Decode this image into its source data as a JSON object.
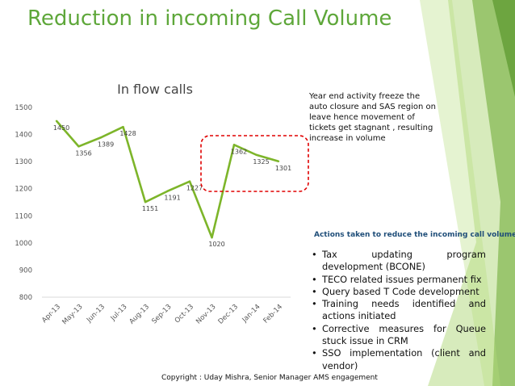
{
  "slide": {
    "title": "Reduction in incoming Call Volume",
    "note": "Year end activity freeze the auto closure and SAS region on leave hence movement of tickets get stagnant , resulting increase in volume",
    "actions_heading": "Actions taken to reduce the incoming call volume",
    "actions": [
      "Tax updating program development (BCONE)",
      "TECO related issues permanent fix",
      "Query based T Code development",
      "Training needs identified and actions initiated",
      "Corrective measures for Queue stuck issue in CRM",
      "SSO implementation (client and vendor)"
    ],
    "bullet_glyph": "•",
    "footer": "Copyright : Uday Mishra, Senior Manager AMS engagement",
    "colors": {
      "title": "#5ea73a",
      "line": "#7db52a",
      "highlight_box": "#e00000",
      "heading": "#1f4e79",
      "deco_green": "#8cc63f"
    }
  },
  "chart_data": {
    "type": "line",
    "title": "In flow calls",
    "categories": [
      "Apr-13",
      "May-13",
      "Jun-13",
      "Jul-13",
      "Aug-13",
      "Sep-13",
      "Oct-13",
      "Nov-13",
      "Dec-13",
      "Jan-14",
      "Feb-14"
    ],
    "series": [
      {
        "values": [
          1450,
          1356,
          1389,
          1428,
          1151,
          1191,
          1227,
          1020,
          1362,
          1325,
          1301
        ]
      }
    ],
    "yticks": [
      800,
      900,
      1000,
      1100,
      1200,
      1300,
      1400,
      1500
    ],
    "ylim": [
      800,
      1500
    ],
    "data_labels": true,
    "grid": false,
    "legend": "none",
    "highlight": {
      "categories": [
        "Dec-13",
        "Jan-14",
        "Feb-14"
      ],
      "style": "dashed red rounded box"
    }
  }
}
